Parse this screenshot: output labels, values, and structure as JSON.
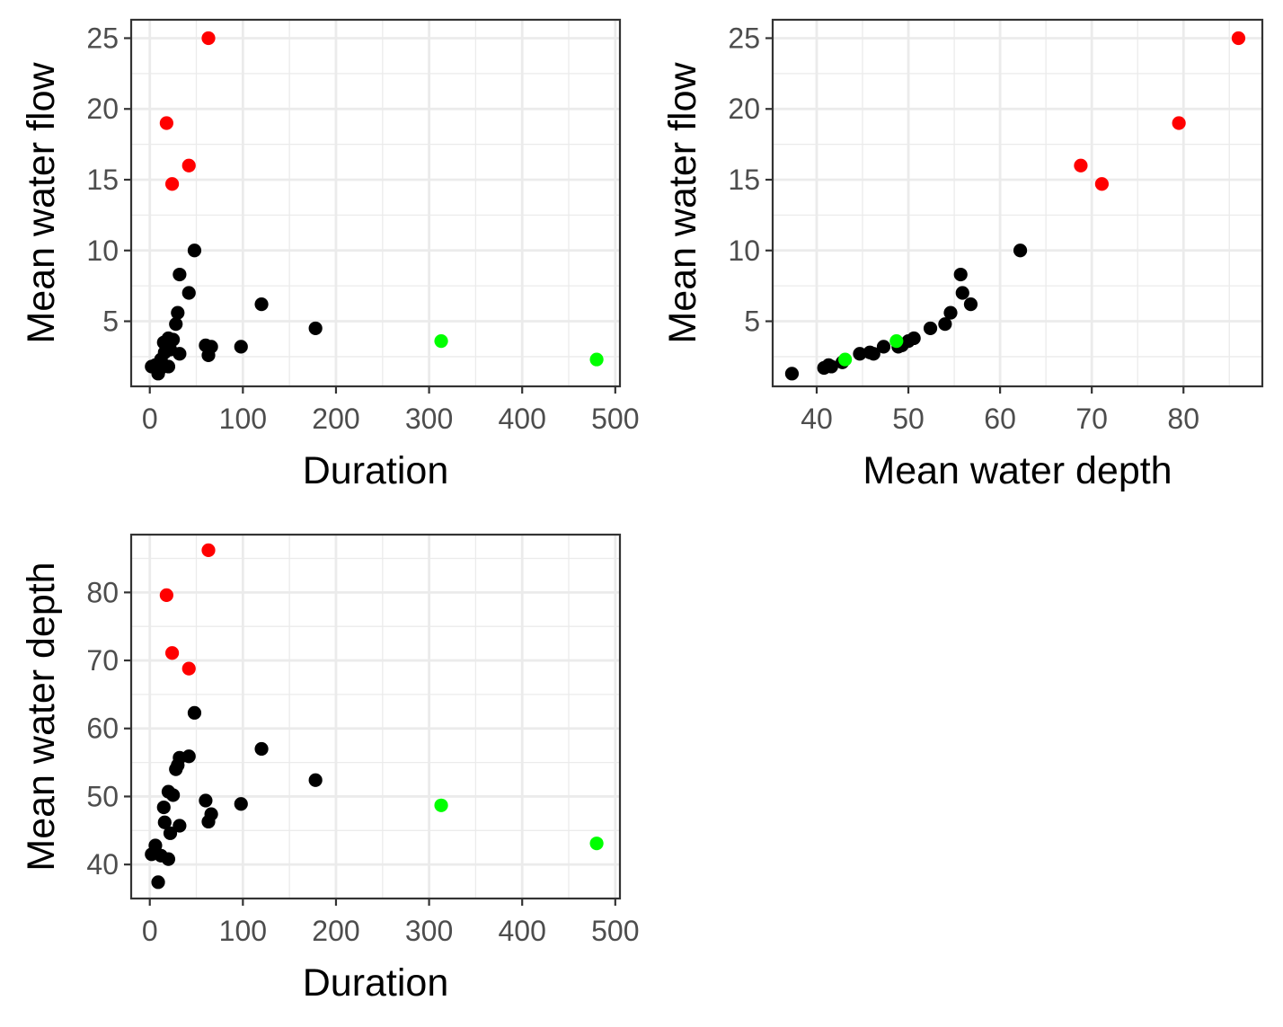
{
  "colors": {
    "default": "#000000",
    "high": "#ff0000",
    "long": "#00ff00"
  },
  "chart_data": [
    {
      "type": "scatter",
      "title": "",
      "xlabel": "Duration",
      "ylabel": "Mean water flow",
      "xlim": [
        -20,
        505
      ],
      "ylim": [
        0.4,
        26.3
      ],
      "xticks": [
        0,
        100,
        200,
        300,
        400,
        500
      ],
      "yticks": [
        5,
        10,
        15,
        20,
        25
      ],
      "grid": true,
      "points": [
        {
          "x": 63,
          "y": 25.0,
          "group": "high"
        },
        {
          "x": 18,
          "y": 19.0,
          "group": "high"
        },
        {
          "x": 42,
          "y": 16.0,
          "group": "high"
        },
        {
          "x": 24,
          "y": 14.7,
          "group": "high"
        },
        {
          "x": 48,
          "y": 10.0,
          "group": "default"
        },
        {
          "x": 32,
          "y": 8.3,
          "group": "default"
        },
        {
          "x": 42,
          "y": 7.0,
          "group": "default"
        },
        {
          "x": 120,
          "y": 6.2,
          "group": "default"
        },
        {
          "x": 30,
          "y": 5.6,
          "group": "default"
        },
        {
          "x": 28,
          "y": 4.8,
          "group": "default"
        },
        {
          "x": 178,
          "y": 4.5,
          "group": "default"
        },
        {
          "x": 20,
          "y": 3.8,
          "group": "default"
        },
        {
          "x": 25,
          "y": 3.7,
          "group": "default"
        },
        {
          "x": 15,
          "y": 3.5,
          "group": "default"
        },
        {
          "x": 60,
          "y": 3.3,
          "group": "default"
        },
        {
          "x": 66,
          "y": 3.2,
          "group": "default"
        },
        {
          "x": 98,
          "y": 3.2,
          "group": "default"
        },
        {
          "x": 22,
          "y": 3.0,
          "group": "default"
        },
        {
          "x": 16,
          "y": 2.8,
          "group": "default"
        },
        {
          "x": 32,
          "y": 2.7,
          "group": "default"
        },
        {
          "x": 63,
          "y": 2.6,
          "group": "default"
        },
        {
          "x": 12,
          "y": 2.3,
          "group": "default"
        },
        {
          "x": 6,
          "y": 1.9,
          "group": "default"
        },
        {
          "x": 2,
          "y": 1.8,
          "group": "default"
        },
        {
          "x": 20,
          "y": 1.8,
          "group": "default"
        },
        {
          "x": 12,
          "y": 1.7,
          "group": "default"
        },
        {
          "x": 9,
          "y": 1.3,
          "group": "default"
        },
        {
          "x": 313,
          "y": 3.6,
          "group": "long"
        },
        {
          "x": 480,
          "y": 2.3,
          "group": "long"
        }
      ]
    },
    {
      "type": "scatter",
      "title": "",
      "xlabel": "Mean water depth",
      "ylabel": "Mean water flow",
      "xlim": [
        35.2,
        88.6
      ],
      "ylim": [
        0.4,
        26.3
      ],
      "xticks": [
        40,
        50,
        60,
        70,
        80
      ],
      "yticks": [
        5,
        10,
        15,
        20,
        25
      ],
      "grid": true,
      "points": [
        {
          "x": 86.0,
          "y": 25.0,
          "group": "high"
        },
        {
          "x": 79.5,
          "y": 19.0,
          "group": "high"
        },
        {
          "x": 68.8,
          "y": 16.0,
          "group": "high"
        },
        {
          "x": 71.1,
          "y": 14.7,
          "group": "high"
        },
        {
          "x": 62.2,
          "y": 10.0,
          "group": "default"
        },
        {
          "x": 55.7,
          "y": 8.3,
          "group": "default"
        },
        {
          "x": 55.9,
          "y": 7.0,
          "group": "default"
        },
        {
          "x": 56.8,
          "y": 6.2,
          "group": "default"
        },
        {
          "x": 54.6,
          "y": 5.6,
          "group": "default"
        },
        {
          "x": 54.0,
          "y": 4.8,
          "group": "default"
        },
        {
          "x": 52.4,
          "y": 4.5,
          "group": "default"
        },
        {
          "x": 50.6,
          "y": 3.8,
          "group": "default"
        },
        {
          "x": 50.0,
          "y": 3.6,
          "group": "default"
        },
        {
          "x": 49.3,
          "y": 3.3,
          "group": "default"
        },
        {
          "x": 48.9,
          "y": 3.2,
          "group": "default"
        },
        {
          "x": 47.3,
          "y": 3.2,
          "group": "default"
        },
        {
          "x": 46.2,
          "y": 2.7,
          "group": "default"
        },
        {
          "x": 45.8,
          "y": 2.8,
          "group": "default"
        },
        {
          "x": 44.7,
          "y": 2.7,
          "group": "default"
        },
        {
          "x": 42.8,
          "y": 2.1,
          "group": "default"
        },
        {
          "x": 41.6,
          "y": 1.8,
          "group": "default"
        },
        {
          "x": 41.3,
          "y": 1.9,
          "group": "default"
        },
        {
          "x": 40.8,
          "y": 1.7,
          "group": "default"
        },
        {
          "x": 37.3,
          "y": 1.3,
          "group": "default"
        },
        {
          "x": 43.1,
          "y": 2.3,
          "group": "long"
        },
        {
          "x": 48.7,
          "y": 3.6,
          "group": "long"
        }
      ]
    },
    {
      "type": "scatter",
      "title": "",
      "xlabel": "Duration",
      "ylabel": "Mean water depth",
      "xlim": [
        -20,
        505
      ],
      "ylim": [
        35,
        88.5
      ],
      "xticks": [
        0,
        100,
        200,
        300,
        400,
        500
      ],
      "yticks": [
        40,
        50,
        60,
        70,
        80
      ],
      "grid": true,
      "points": [
        {
          "x": 63,
          "y": 86.2,
          "group": "high"
        },
        {
          "x": 18,
          "y": 79.6,
          "group": "high"
        },
        {
          "x": 24,
          "y": 71.1,
          "group": "high"
        },
        {
          "x": 42,
          "y": 68.8,
          "group": "high"
        },
        {
          "x": 48,
          "y": 62.3,
          "group": "default"
        },
        {
          "x": 120,
          "y": 57.0,
          "group": "default"
        },
        {
          "x": 42,
          "y": 55.9,
          "group": "default"
        },
        {
          "x": 32,
          "y": 55.7,
          "group": "default"
        },
        {
          "x": 30,
          "y": 54.6,
          "group": "default"
        },
        {
          "x": 28,
          "y": 54.0,
          "group": "default"
        },
        {
          "x": 178,
          "y": 52.4,
          "group": "default"
        },
        {
          "x": 20,
          "y": 50.7,
          "group": "default"
        },
        {
          "x": 25,
          "y": 50.2,
          "group": "default"
        },
        {
          "x": 60,
          "y": 49.4,
          "group": "default"
        },
        {
          "x": 98,
          "y": 48.9,
          "group": "default"
        },
        {
          "x": 15,
          "y": 48.4,
          "group": "default"
        },
        {
          "x": 66,
          "y": 47.4,
          "group": "default"
        },
        {
          "x": 63,
          "y": 46.3,
          "group": "default"
        },
        {
          "x": 16,
          "y": 46.2,
          "group": "default"
        },
        {
          "x": 32,
          "y": 45.7,
          "group": "default"
        },
        {
          "x": 22,
          "y": 44.6,
          "group": "default"
        },
        {
          "x": 6,
          "y": 42.8,
          "group": "default"
        },
        {
          "x": 2,
          "y": 41.5,
          "group": "default"
        },
        {
          "x": 12,
          "y": 41.3,
          "group": "default"
        },
        {
          "x": 20,
          "y": 40.8,
          "group": "default"
        },
        {
          "x": 9,
          "y": 37.4,
          "group": "default"
        },
        {
          "x": 313,
          "y": 48.7,
          "group": "long"
        },
        {
          "x": 480,
          "y": 43.1,
          "group": "long"
        }
      ]
    }
  ]
}
